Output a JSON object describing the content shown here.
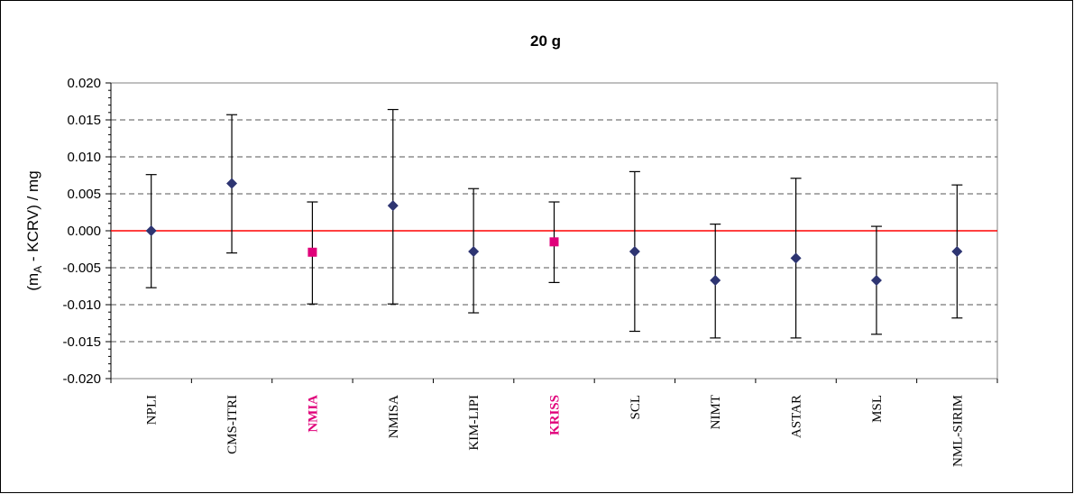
{
  "chart_data": {
    "type": "scatter",
    "title": "20 g",
    "ylabel_prefix": "(m",
    "ylabel_sub": "A",
    "ylabel_suffix": " - KCRV) / mg",
    "xlabel": "",
    "ylim": [
      -0.02,
      0.02
    ],
    "ytick_step": 0.005,
    "yticks": [
      "-0.020",
      "-0.015",
      "-0.010",
      "-0.005",
      "0.000",
      "0.005",
      "0.010",
      "0.015",
      "0.020"
    ],
    "grid": "horizontal-dashed",
    "reference_line": {
      "y": 0.0,
      "color": "#ff0000"
    },
    "colors": {
      "default_marker": "#2e3572",
      "highlight": "#e0007a",
      "error_bar": "#000000",
      "grid": "#555555"
    },
    "points": [
      {
        "label": "NPLI",
        "value": 0.0,
        "lower": -0.0077,
        "upper": 0.0076,
        "highlight": false
      },
      {
        "label": "CMS-ITRI",
        "value": 0.0064,
        "lower": -0.003,
        "upper": 0.0157,
        "highlight": false
      },
      {
        "label": "NMIA",
        "value": -0.0029,
        "lower": -0.0099,
        "upper": 0.0039,
        "highlight": true
      },
      {
        "label": "NMISA",
        "value": 0.0034,
        "lower": -0.0099,
        "upper": 0.0164,
        "highlight": false
      },
      {
        "label": "KIM-LIPI",
        "value": -0.0028,
        "lower": -0.0111,
        "upper": 0.0057,
        "highlight": false
      },
      {
        "label": "KRISS",
        "value": -0.0015,
        "lower": -0.007,
        "upper": 0.0039,
        "highlight": true
      },
      {
        "label": "SCL",
        "value": -0.0028,
        "lower": -0.0136,
        "upper": 0.008,
        "highlight": false
      },
      {
        "label": "NIMT",
        "value": -0.0067,
        "lower": -0.0145,
        "upper": 0.0009,
        "highlight": false
      },
      {
        "label": "ASTAR",
        "value": -0.0037,
        "lower": -0.0145,
        "upper": 0.0071,
        "highlight": false
      },
      {
        "label": "MSL",
        "value": -0.0067,
        "lower": -0.014,
        "upper": 0.0006,
        "highlight": false
      },
      {
        "label": "NML-SIRIM",
        "value": -0.0028,
        "lower": -0.0118,
        "upper": 0.0062,
        "highlight": false
      }
    ]
  }
}
